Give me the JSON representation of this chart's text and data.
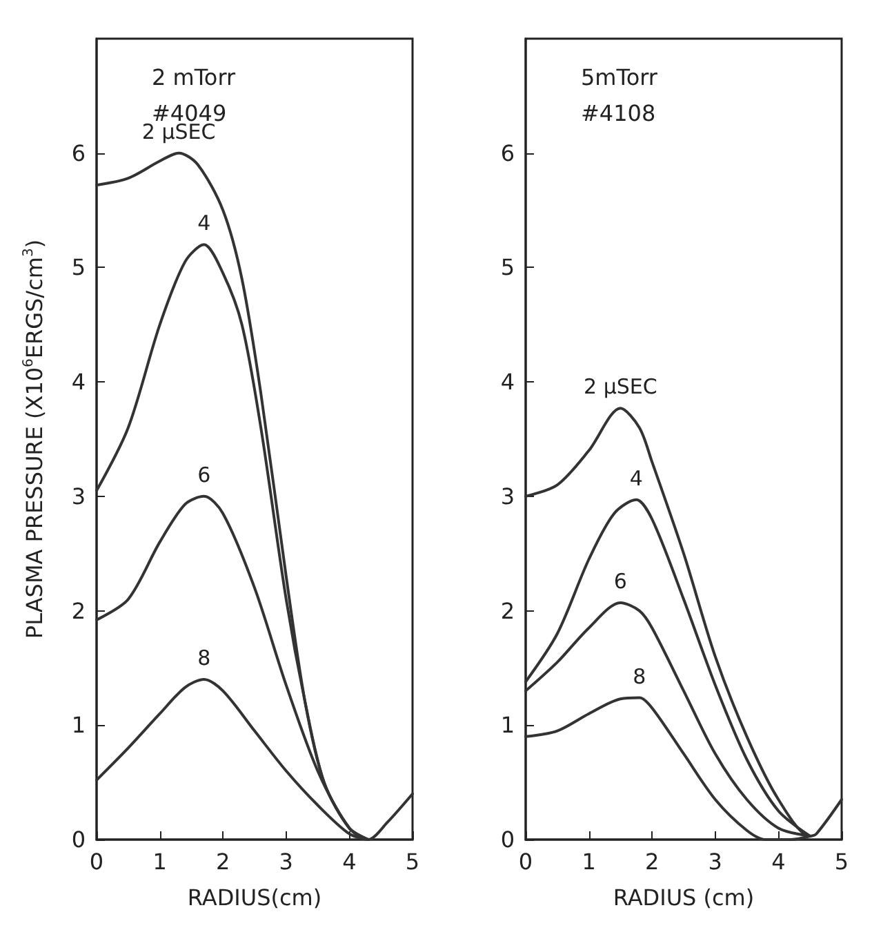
{
  "chart_data": [
    {
      "type": "line",
      "ylabel": "PLASMA PRESSURE (X10$^{6}$ERGS/cm$^{3}$)",
      "xlabel": "RADIUS(cm)",
      "annotations": [
        "2 mTorr",
        "#4049"
      ],
      "xlim": [
        0,
        5
      ],
      "xticks": [
        0,
        1,
        2,
        3,
        4,
        5
      ],
      "ylim": [
        0,
        7
      ],
      "yticks": [
        0,
        1,
        2,
        3,
        4,
        5,
        6
      ],
      "grid": false,
      "legend": false,
      "series": [
        {
          "name": "2 μSEC",
          "color": "#333333",
          "x": [
            0,
            0.5,
            1,
            1.3,
            1.6,
            2,
            2.3,
            2.6,
            3,
            3.3,
            3.6,
            4,
            4.3,
            4.6,
            5
          ],
          "values": [
            5.72,
            5.78,
            5.93,
            6,
            5.9,
            5.5,
            4.9,
            3.9,
            2.3,
            1.2,
            0.5,
            0.1,
            0,
            0.15,
            0.4
          ]
        },
        {
          "name": "4",
          "color": "#333333",
          "x": [
            0,
            0.5,
            1,
            1.4,
            1.7,
            2,
            2.3,
            2.6,
            3,
            3.3,
            3.6,
            4,
            4.3
          ],
          "values": [
            3.05,
            3.6,
            4.5,
            5.05,
            5.2,
            4.95,
            4.5,
            3.6,
            2.1,
            1.2,
            0.5,
            0.1,
            0
          ]
        },
        {
          "name": "6",
          "color": "#333333",
          "x": [
            0,
            0.5,
            1,
            1.4,
            1.7,
            2,
            2.5,
            3,
            3.5,
            4,
            4.3
          ],
          "values": [
            1.92,
            2.1,
            2.6,
            2.93,
            3,
            2.85,
            2.2,
            1.35,
            0.6,
            0.1,
            0
          ]
        },
        {
          "name": "8",
          "color": "#333333",
          "x": [
            0,
            0.5,
            1,
            1.4,
            1.7,
            2,
            2.5,
            3,
            3.5,
            4,
            4.3
          ],
          "values": [
            0.52,
            0.8,
            1.1,
            1.33,
            1.4,
            1.3,
            0.95,
            0.6,
            0.3,
            0.05,
            0
          ]
        }
      ]
    },
    {
      "type": "line",
      "xlabel": "RADIUS (cm)",
      "annotations": [
        "5mTorr",
        "#4108"
      ],
      "xlim": [
        0,
        5
      ],
      "xticks": [
        0,
        1,
        2,
        3,
        4,
        5
      ],
      "ylim": [
        0,
        7
      ],
      "yticks": [
        0,
        1,
        2,
        3,
        4,
        5,
        6
      ],
      "grid": false,
      "legend": false,
      "series": [
        {
          "name": "2 μSEC",
          "color": "#333333",
          "x": [
            0,
            0.5,
            1,
            1.5,
            1.8,
            2,
            2.5,
            3,
            3.5,
            4,
            4.5,
            4.6,
            5
          ],
          "values": [
            3,
            3.1,
            3.4,
            3.77,
            3.6,
            3.3,
            2.5,
            1.6,
            0.9,
            0.35,
            0.03,
            0.05,
            0.35
          ]
        },
        {
          "name": "4",
          "color": "#333333",
          "x": [
            0,
            0.5,
            1,
            1.4,
            1.75,
            2,
            2.5,
            3,
            3.5,
            4,
            4.5
          ],
          "values": [
            1.38,
            1.8,
            2.45,
            2.85,
            2.97,
            2.8,
            2.1,
            1.35,
            0.7,
            0.25,
            0.03
          ]
        },
        {
          "name": "6",
          "color": "#333333",
          "x": [
            0,
            0.5,
            1,
            1.5,
            1.8,
            2,
            2.5,
            3,
            3.5,
            4,
            4.5
          ],
          "values": [
            1.3,
            1.55,
            1.85,
            2.07,
            2,
            1.85,
            1.3,
            0.75,
            0.35,
            0.1,
            0.03
          ]
        },
        {
          "name": "8",
          "color": "#333333",
          "x": [
            0,
            0.5,
            1,
            1.5,
            1.8,
            2,
            2.5,
            3,
            3.5,
            3.8,
            4.2,
            4.5
          ],
          "values": [
            0.9,
            0.95,
            1.1,
            1.23,
            1.24,
            1.15,
            0.75,
            0.35,
            0.08,
            0,
            0,
            0.03
          ]
        }
      ]
    }
  ]
}
